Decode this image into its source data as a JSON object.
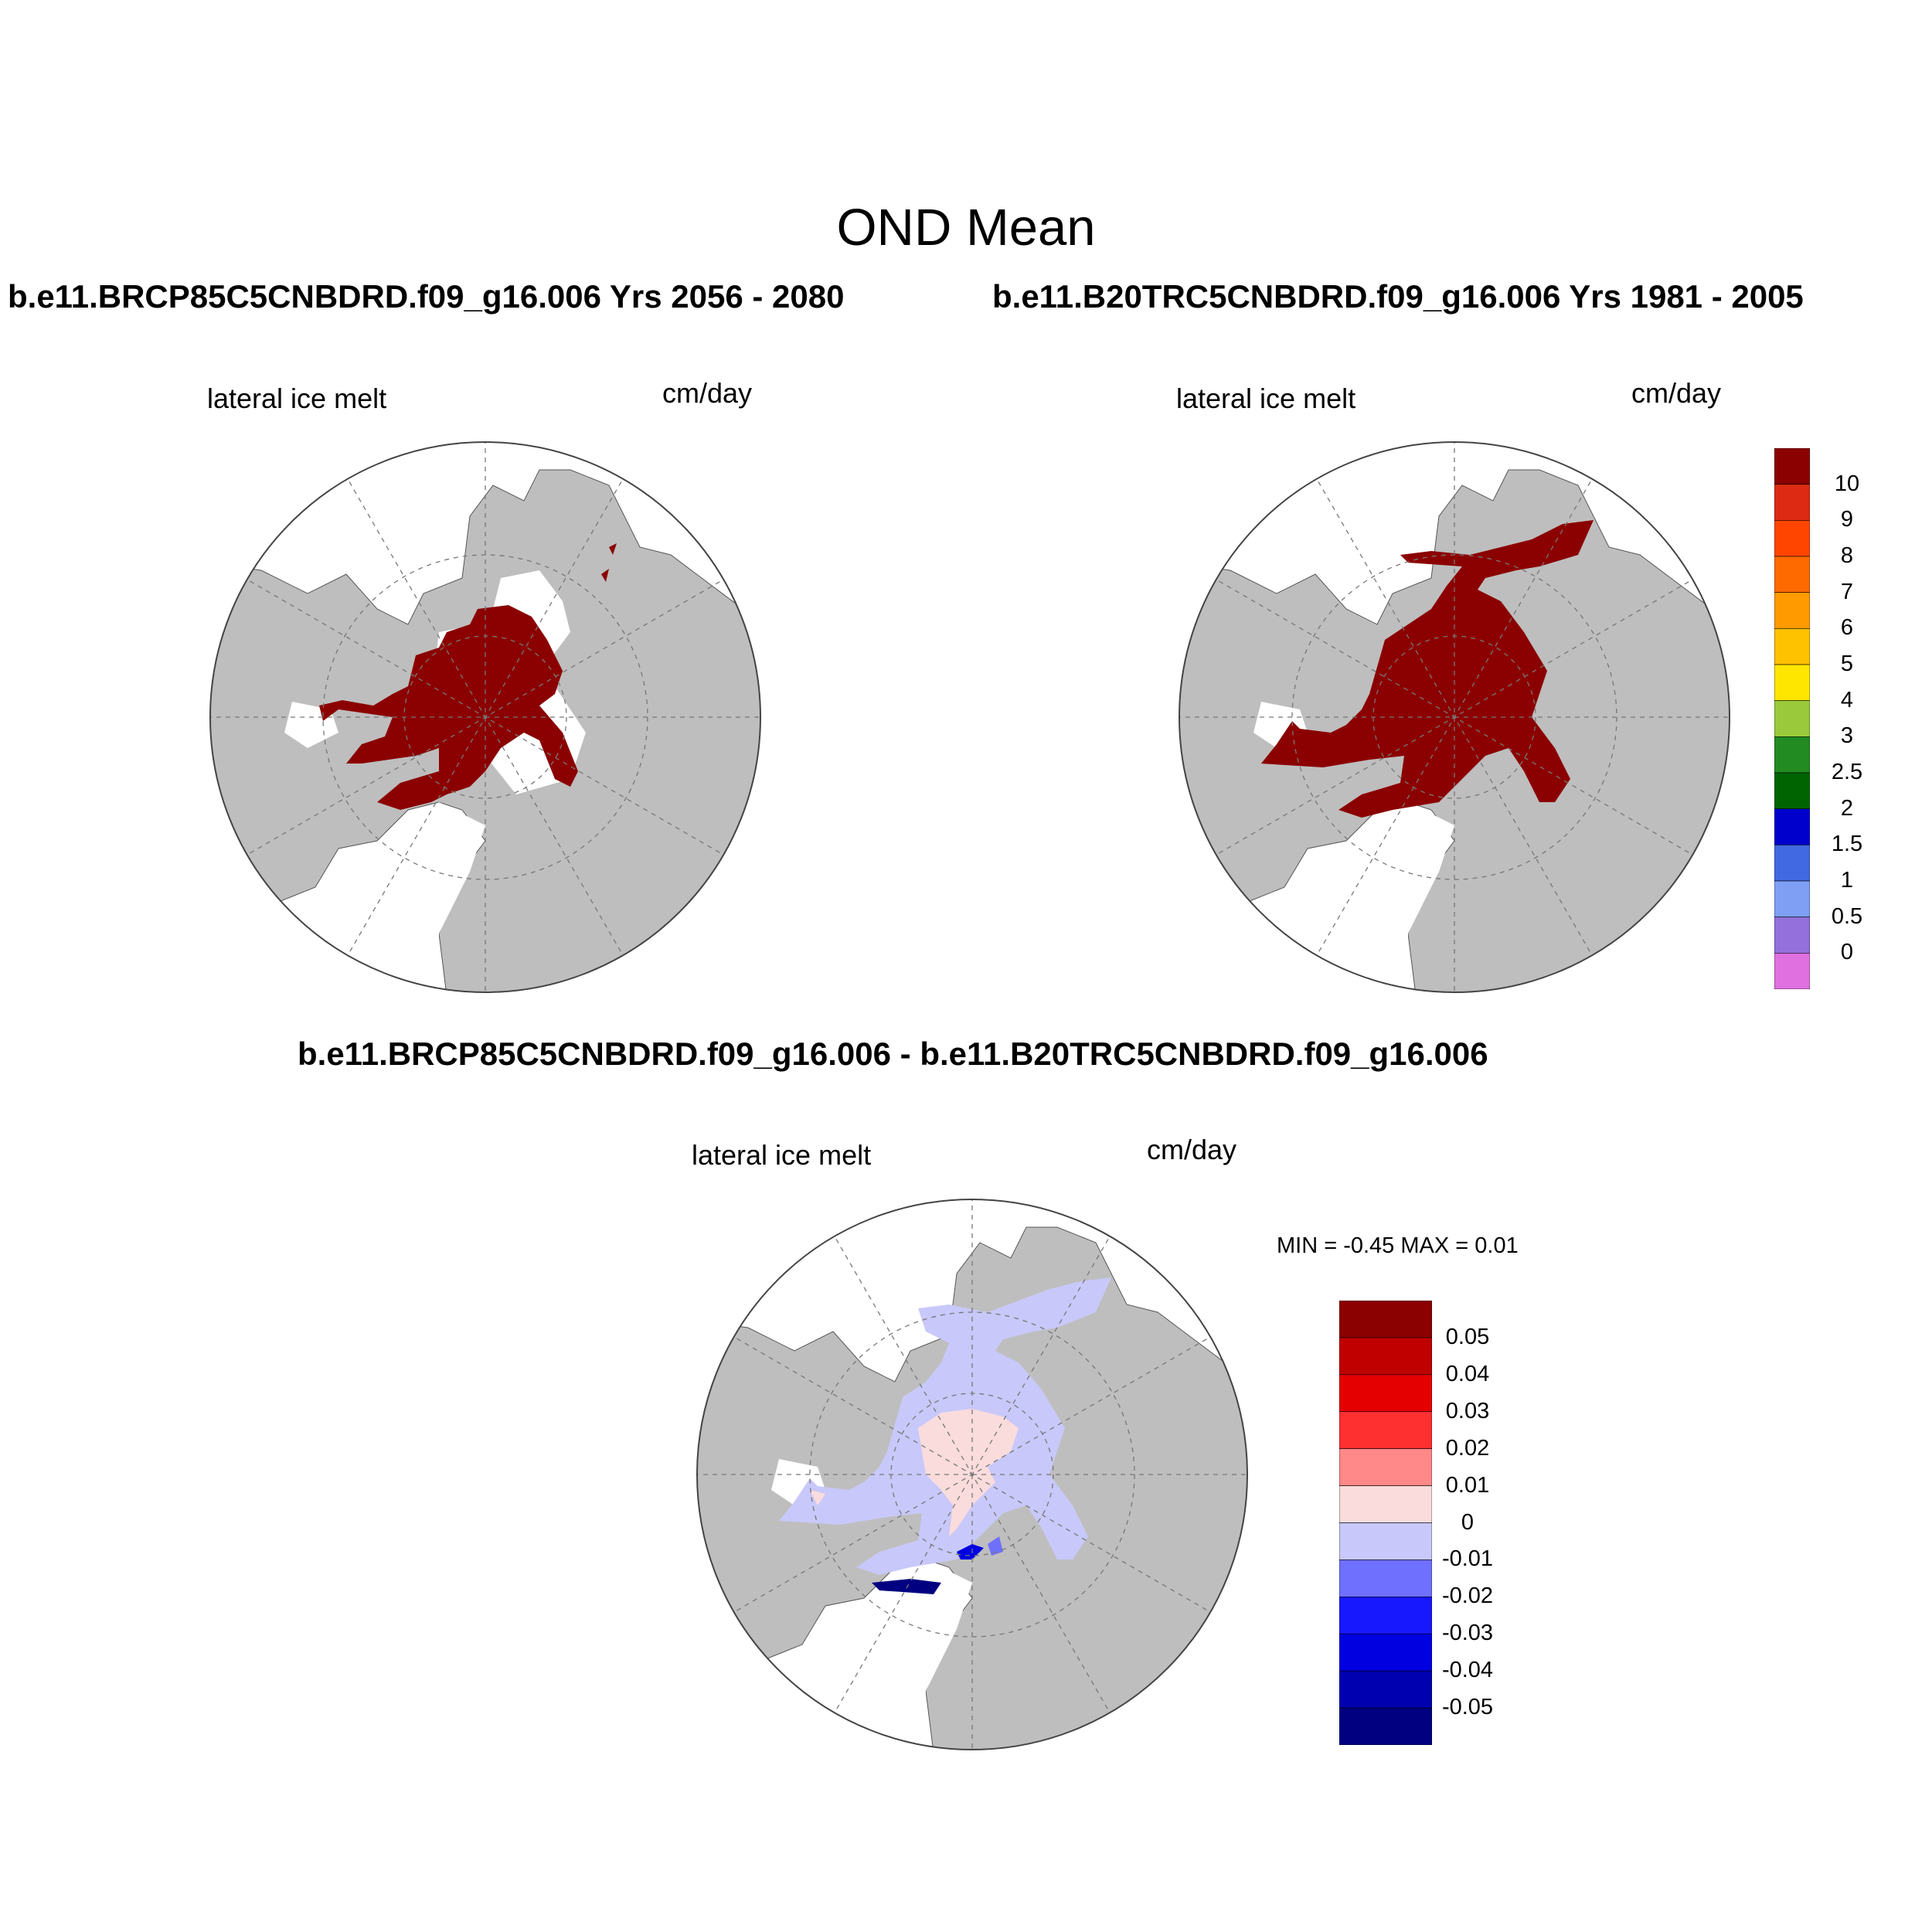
{
  "figure": {
    "title": "OND Mean",
    "subtitle_left": "b.e11.BRCP85C5CNBDRD.f09_g16.006  Yrs 2056 - 2080",
    "subtitle_right": "b.e11.B20TRC5CNBDRD.f09_g16.006  Yrs 1981 - 2005",
    "diff_title": "b.e11.BRCP85C5CNBDRD.f09_g16.006 - b.e11.B20TRC5CNBDRD.f09_g16.006"
  },
  "panels": [
    {
      "variable": "lateral ice melt",
      "units": "cm/day"
    },
    {
      "variable": "lateral ice melt",
      "units": "cm/day"
    },
    {
      "variable": "lateral ice melt",
      "units": "cm/day",
      "stats": "MIN =  -0.45 MAX =   0.01"
    }
  ],
  "colors": {
    "land": "#bebebe",
    "ocean": "#ffffff",
    "ice_melt_max": "#8b0000"
  },
  "colorbar_top": {
    "labels": [
      "10",
      "9",
      "8",
      "7",
      "6",
      "5",
      "4",
      "3",
      "2.5",
      "2",
      "1.5",
      "1",
      "0.5",
      "0"
    ],
    "colors": [
      "#8b0000",
      "#dd2a12",
      "#ff4500",
      "#ff6a00",
      "#ff9a00",
      "#ffc200",
      "#ffe600",
      "#9aca3c",
      "#228b22",
      "#006400",
      "#0000cd",
      "#4169e1",
      "#7f9ff5",
      "#9370db",
      "#e070e0"
    ]
  },
  "colorbar_diff": {
    "labels": [
      "0.05",
      "0.04",
      "0.03",
      "0.02",
      "0.01",
      "0",
      "-0.01",
      "-0.02",
      "-0.03",
      "-0.04",
      "-0.05"
    ],
    "colors": [
      "#8b0000",
      "#c00000",
      "#e50000",
      "#ff3030",
      "#ff8888",
      "#fadcdc",
      "#c8c8fa",
      "#7070ff",
      "#1818ff",
      "#0000e0",
      "#0000b0",
      "#000080"
    ]
  }
}
